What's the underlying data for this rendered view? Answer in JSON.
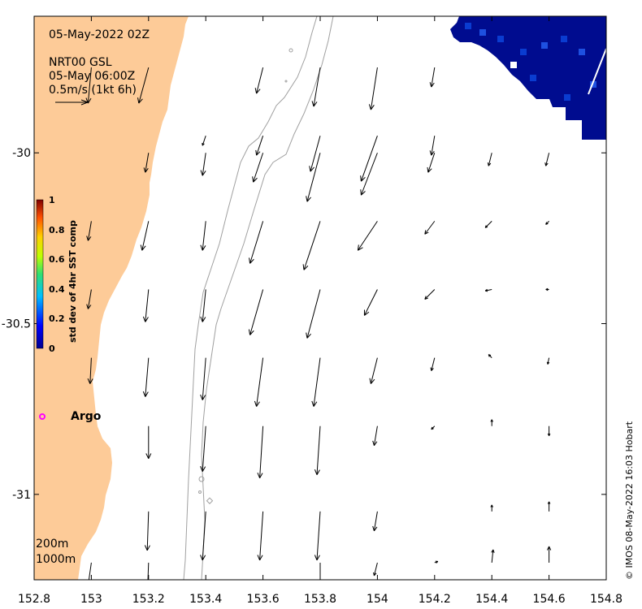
{
  "title": "05-May-2022 02Z",
  "product": {
    "line1": "NRT00 GSL",
    "line2": "05-May 06:00Z",
    "scale_label": "0.5m/s (1kt 6h)"
  },
  "colorbar": {
    "label": "std dev of 4hr SST comp",
    "ticks": [
      "1",
      "0.8",
      "0.6",
      "0.4",
      "0.2",
      "0"
    ]
  },
  "argo": {
    "label": "Argo"
  },
  "contours": {
    "c200": "200m",
    "c1000": "1000m"
  },
  "credit": "© IMOS 08-May-2022 16:03 Hobart",
  "colors": {
    "land": "#FDCB98",
    "sst_dark": "#000C8F",
    "sst_mid": "#0A3CD0",
    "argo": "#FF00FF",
    "contour": "#A0A0A0"
  },
  "chart_data": {
    "type": "map",
    "x_axis": {
      "ticks": [
        "152.8",
        "153",
        "153.2",
        "153.4",
        "153.6",
        "153.8",
        "154",
        "154.2",
        "154.4",
        "154.6",
        "154.8"
      ],
      "range": [
        152.8,
        154.8
      ]
    },
    "y_axis": {
      "ticks": [
        "-30",
        "-30.5",
        "-31"
      ],
      "range": [
        -31.25,
        -29.6
      ]
    },
    "current_vectors": [
      {
        "lon": 153.0,
        "lat": -29.75,
        "u": -0.05,
        "v": -0.55
      },
      {
        "lon": 153.2,
        "lat": -29.75,
        "u": -0.15,
        "v": -0.55
      },
      {
        "lon": 153.6,
        "lat": -29.75,
        "u": -0.1,
        "v": -0.4
      },
      {
        "lon": 153.8,
        "lat": -29.75,
        "u": -0.1,
        "v": -0.6
      },
      {
        "lon": 154.0,
        "lat": -29.75,
        "u": -0.1,
        "v": -0.65
      },
      {
        "lon": 154.2,
        "lat": -29.75,
        "u": -0.05,
        "v": -0.3
      },
      {
        "lon": 153.4,
        "lat": -29.95,
        "u": -0.05,
        "v": -0.15
      },
      {
        "lon": 153.6,
        "lat": -29.95,
        "u": -0.1,
        "v": -0.3
      },
      {
        "lon": 153.8,
        "lat": -29.95,
        "u": -0.15,
        "v": -0.55
      },
      {
        "lon": 154.0,
        "lat": -29.95,
        "u": -0.25,
        "v": -0.7
      },
      {
        "lon": 154.2,
        "lat": -29.95,
        "u": -0.05,
        "v": -0.3
      },
      {
        "lon": 153.2,
        "lat": -30.0,
        "u": -0.05,
        "v": -0.3
      },
      {
        "lon": 153.4,
        "lat": -30.0,
        "u": -0.05,
        "v": -0.35
      },
      {
        "lon": 153.6,
        "lat": -30.0,
        "u": -0.15,
        "v": -0.45
      },
      {
        "lon": 153.8,
        "lat": -30.0,
        "u": -0.2,
        "v": -0.75
      },
      {
        "lon": 154.0,
        "lat": -30.0,
        "u": -0.25,
        "v": -0.65
      },
      {
        "lon": 154.2,
        "lat": -30.0,
        "u": -0.1,
        "v": -0.3
      },
      {
        "lon": 154.4,
        "lat": -30.0,
        "u": -0.05,
        "v": -0.2
      },
      {
        "lon": 154.6,
        "lat": -30.0,
        "u": -0.05,
        "v": -0.2
      },
      {
        "lon": 153.0,
        "lat": -30.2,
        "u": -0.05,
        "v": -0.3
      },
      {
        "lon": 153.2,
        "lat": -30.2,
        "u": -0.1,
        "v": -0.45
      },
      {
        "lon": 153.4,
        "lat": -30.2,
        "u": -0.05,
        "v": -0.45
      },
      {
        "lon": 153.6,
        "lat": -30.2,
        "u": -0.2,
        "v": -0.65
      },
      {
        "lon": 153.8,
        "lat": -30.2,
        "u": -0.25,
        "v": -0.75
      },
      {
        "lon": 154.0,
        "lat": -30.2,
        "u": -0.3,
        "v": -0.45
      },
      {
        "lon": 154.2,
        "lat": -30.2,
        "u": -0.15,
        "v": -0.2
      },
      {
        "lon": 154.4,
        "lat": -30.2,
        "u": -0.1,
        "v": -0.1
      },
      {
        "lon": 154.6,
        "lat": -30.2,
        "u": -0.05,
        "v": -0.05
      },
      {
        "lon": 153.0,
        "lat": -30.4,
        "u": -0.05,
        "v": -0.3
      },
      {
        "lon": 153.2,
        "lat": -30.4,
        "u": -0.05,
        "v": -0.5
      },
      {
        "lon": 153.4,
        "lat": -30.4,
        "u": -0.05,
        "v": -0.5
      },
      {
        "lon": 153.6,
        "lat": -30.4,
        "u": -0.2,
        "v": -0.7
      },
      {
        "lon": 153.8,
        "lat": -30.4,
        "u": -0.2,
        "v": -0.75
      },
      {
        "lon": 154.0,
        "lat": -30.4,
        "u": -0.2,
        "v": -0.4
      },
      {
        "lon": 154.2,
        "lat": -30.4,
        "u": -0.15,
        "v": -0.15
      },
      {
        "lon": 154.4,
        "lat": -30.4,
        "u": -0.1,
        "v": -0.02
      },
      {
        "lon": 154.6,
        "lat": -30.4,
        "u": -0.05,
        "v": 0.0
      },
      {
        "lon": 153.0,
        "lat": -30.6,
        "u": -0.02,
        "v": -0.4
      },
      {
        "lon": 153.2,
        "lat": -30.6,
        "u": -0.05,
        "v": -0.6
      },
      {
        "lon": 153.4,
        "lat": -30.6,
        "u": -0.05,
        "v": -0.65
      },
      {
        "lon": 153.6,
        "lat": -30.6,
        "u": -0.1,
        "v": -0.75
      },
      {
        "lon": 153.8,
        "lat": -30.6,
        "u": -0.1,
        "v": -0.75
      },
      {
        "lon": 154.0,
        "lat": -30.6,
        "u": -0.1,
        "v": -0.4
      },
      {
        "lon": 154.2,
        "lat": -30.6,
        "u": -0.05,
        "v": -0.2
      },
      {
        "lon": 154.4,
        "lat": -30.6,
        "u": -0.05,
        "v": 0.05
      },
      {
        "lon": 154.6,
        "lat": -30.6,
        "u": -0.02,
        "v": -0.1
      },
      {
        "lon": 153.2,
        "lat": -30.8,
        "u": 0.0,
        "v": -0.5
      },
      {
        "lon": 153.4,
        "lat": -30.8,
        "u": -0.05,
        "v": -0.7
      },
      {
        "lon": 153.6,
        "lat": -30.8,
        "u": -0.05,
        "v": -0.8
      },
      {
        "lon": 153.8,
        "lat": -30.8,
        "u": -0.05,
        "v": -0.75
      },
      {
        "lon": 154.0,
        "lat": -30.8,
        "u": -0.05,
        "v": -0.3
      },
      {
        "lon": 154.2,
        "lat": -30.8,
        "u": -0.05,
        "v": -0.05
      },
      {
        "lon": 154.4,
        "lat": -30.8,
        "u": 0.0,
        "v": 0.1
      },
      {
        "lon": 154.6,
        "lat": -30.8,
        "u": 0.0,
        "v": -0.15
      },
      {
        "lon": 153.2,
        "lat": -31.05,
        "u": -0.02,
        "v": -0.6
      },
      {
        "lon": 153.4,
        "lat": -31.05,
        "u": -0.05,
        "v": -0.75
      },
      {
        "lon": 153.6,
        "lat": -31.05,
        "u": -0.05,
        "v": -0.75
      },
      {
        "lon": 153.8,
        "lat": -31.05,
        "u": -0.05,
        "v": -0.75
      },
      {
        "lon": 154.0,
        "lat": -31.05,
        "u": -0.05,
        "v": -0.3
      },
      {
        "lon": 154.2,
        "lat": -31.05,
        "u": 0.0,
        "v": 0.0
      },
      {
        "lon": 154.4,
        "lat": -31.05,
        "u": 0.0,
        "v": 0.1
      },
      {
        "lon": 154.6,
        "lat": -31.05,
        "u": 0.0,
        "v": 0.15
      },
      {
        "lon": 153.0,
        "lat": -31.2,
        "u": -0.05,
        "v": -0.35
      },
      {
        "lon": 153.2,
        "lat": -31.2,
        "u": -0.02,
        "v": -0.55
      },
      {
        "lon": 153.8,
        "lat": -31.2,
        "u": 0.0,
        "v": -0.6
      },
      {
        "lon": 154.0,
        "lat": -31.2,
        "u": -0.05,
        "v": -0.2
      },
      {
        "lon": 154.2,
        "lat": -31.2,
        "u": 0.05,
        "v": 0.02
      },
      {
        "lon": 154.4,
        "lat": -31.2,
        "u": 0.02,
        "v": 0.2
      },
      {
        "lon": 154.6,
        "lat": -31.2,
        "u": 0.0,
        "v": 0.25
      }
    ]
  }
}
